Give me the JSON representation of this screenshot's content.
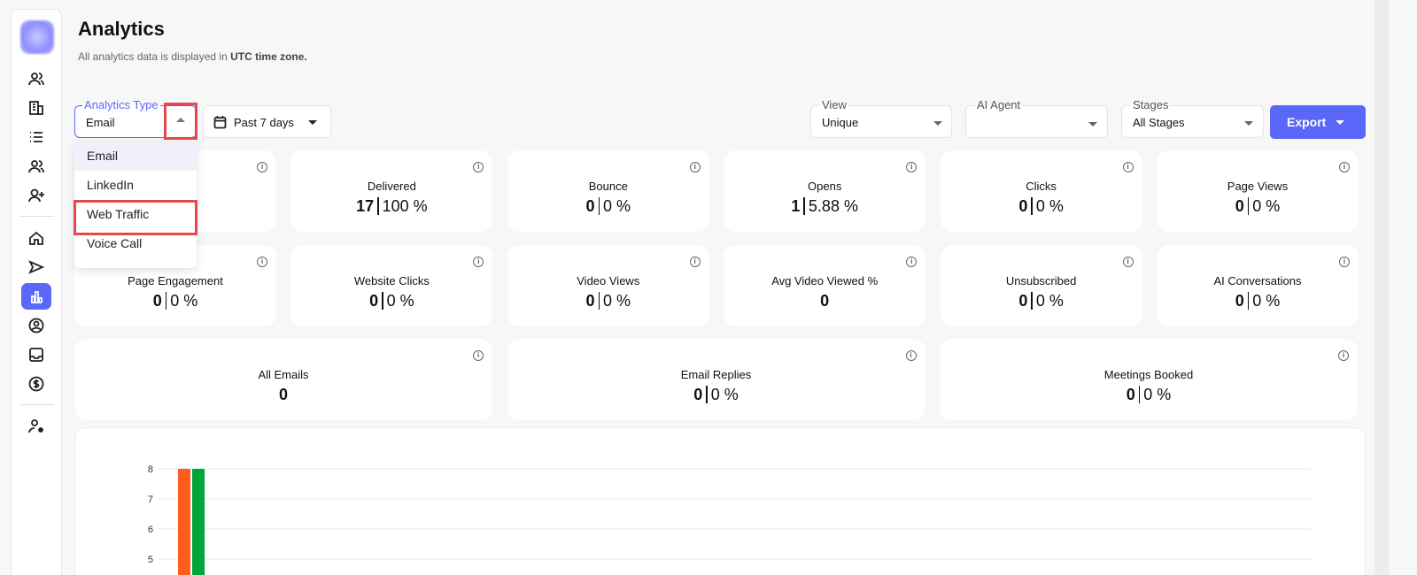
{
  "sidebar": {
    "items": [
      "contacts-icon",
      "companies-icon",
      "lists-icon",
      "team-icon",
      "add-user-icon",
      "home-icon",
      "send-icon",
      "analytics-icon",
      "profile-icon",
      "inbox-icon",
      "billing-icon",
      "user-settings-icon"
    ],
    "active": "analytics-icon"
  },
  "header": {
    "title": "Analytics",
    "subtitle_prefix": "All analytics data is displayed in ",
    "subtitle_bold": "UTC time zone."
  },
  "filters": {
    "analytics_type": {
      "label": "Analytics Type",
      "value": "Email",
      "options": [
        "Email",
        "LinkedIn",
        "Web Traffic",
        "Voice Call"
      ]
    },
    "date_range": {
      "value": "Past 7 days"
    },
    "view": {
      "label": "View",
      "value": "Unique"
    },
    "ai_agent": {
      "label": "AI Agent",
      "value": ""
    },
    "stages": {
      "label": "Stages",
      "value": "All Stages"
    },
    "export_label": "Export"
  },
  "metrics_row1": [
    {
      "title": "",
      "count": "",
      "pct": ""
    },
    {
      "title": "Delivered",
      "count": "17",
      "pct": "100 %"
    },
    {
      "title": "Bounce",
      "count": "0",
      "pct": "0 %"
    },
    {
      "title": "Opens",
      "count": "1",
      "pct": "5.88 %"
    },
    {
      "title": "Clicks",
      "count": "0",
      "pct": "0 %"
    },
    {
      "title": "Page Views",
      "count": "0",
      "pct": "0 %"
    }
  ],
  "metrics_row2": [
    {
      "title": "Page Engagement",
      "count": "0",
      "pct": "0 %"
    },
    {
      "title": "Website Clicks",
      "count": "0",
      "pct": "0 %"
    },
    {
      "title": "Video Views",
      "count": "0",
      "pct": "0 %"
    },
    {
      "title": "Avg Video Viewed %",
      "count": "0",
      "pct": ""
    },
    {
      "title": "Unsubscribed",
      "count": "0",
      "pct": "0 %"
    },
    {
      "title": "AI Conversations",
      "count": "0",
      "pct": "0 %"
    }
  ],
  "metrics_row3": [
    {
      "title": "All Emails",
      "count": "0",
      "pct": ""
    },
    {
      "title": "Email Replies",
      "count": "0",
      "pct": "0 %"
    },
    {
      "title": "Meetings Booked",
      "count": "0",
      "pct": "0 %"
    }
  ],
  "chart_data": {
    "type": "bar",
    "yticks": [
      "8",
      "7",
      "6",
      "5"
    ],
    "ylim": [
      5,
      8
    ],
    "grid": true,
    "series": [
      {
        "color": "#ff5b1f",
        "values": [
          8
        ]
      },
      {
        "color": "#00a63a",
        "values": [
          8
        ]
      }
    ]
  }
}
